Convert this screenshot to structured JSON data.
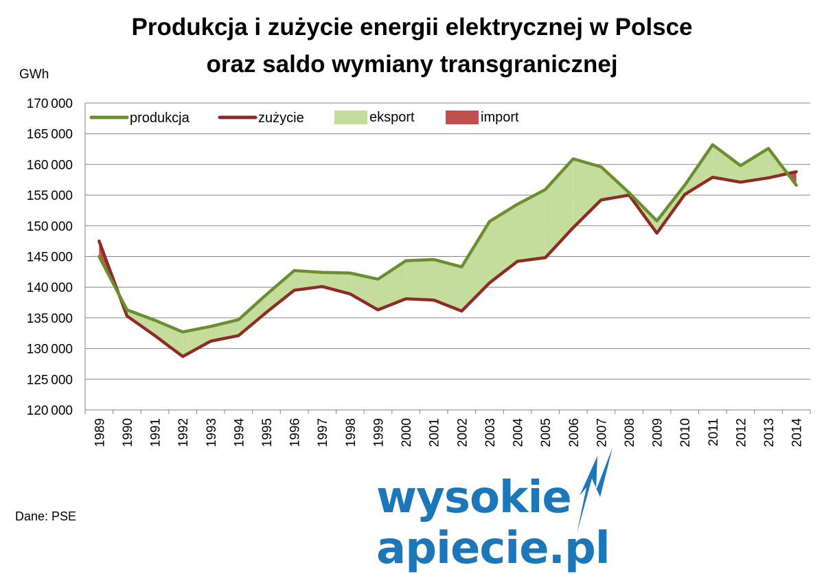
{
  "title_line1": "Produkcja  i zużycie energii elektrycznej w Polsce",
  "title_line2": "oraz saldo wymiany transgranicznej",
  "unit": "GWh",
  "source": "Dane: PSE",
  "logo": {
    "text_left": "wysokie",
    "text_right": "apiecie.pl",
    "bolt": "N",
    "color": "#1b77b9"
  },
  "chart_data": {
    "type": "line",
    "title": "Produkcja  i zużycie energii elektrycznej w Polsce oraz saldo wymiany transgranicznej",
    "ylabel": "GWh",
    "xlabel": "",
    "ylim": [
      120000,
      170000
    ],
    "ytick_step": 5000,
    "grid": true,
    "legend": "top",
    "categories": [
      "1989",
      "1990",
      "1991",
      "1992",
      "1993",
      "1994",
      "1995",
      "1996",
      "1997",
      "1998",
      "1999",
      "2000",
      "2001",
      "2002",
      "2003",
      "2004",
      "2005",
      "2006",
      "2007",
      "2008",
      "2009",
      "2010",
      "2011",
      "2012",
      "2013",
      "2014"
    ],
    "series": [
      {
        "name": "produkcja",
        "color": "#6a8f2e",
        "values": [
          145000,
          136300,
          134600,
          132700,
          133600,
          134700,
          138800,
          142700,
          142400,
          142300,
          141300,
          144300,
          144500,
          143300,
          150700,
          153500,
          155900,
          160900,
          159600,
          155400,
          150800,
          156600,
          163200,
          159800,
          162600,
          156600
        ]
      },
      {
        "name": "zużycie",
        "color": "#8e2b25",
        "values": [
          147500,
          135300,
          132100,
          128700,
          131200,
          132100,
          135900,
          139500,
          140100,
          138900,
          136300,
          138100,
          137900,
          136100,
          140700,
          144200,
          144800,
          149700,
          154200,
          155000,
          148800,
          155100,
          157900,
          157100,
          157800,
          158800
        ]
      }
    ],
    "areas": [
      {
        "name": "eksport",
        "color": "#c4dd9c"
      },
      {
        "name": "import",
        "color": "#c0504d"
      }
    ]
  }
}
